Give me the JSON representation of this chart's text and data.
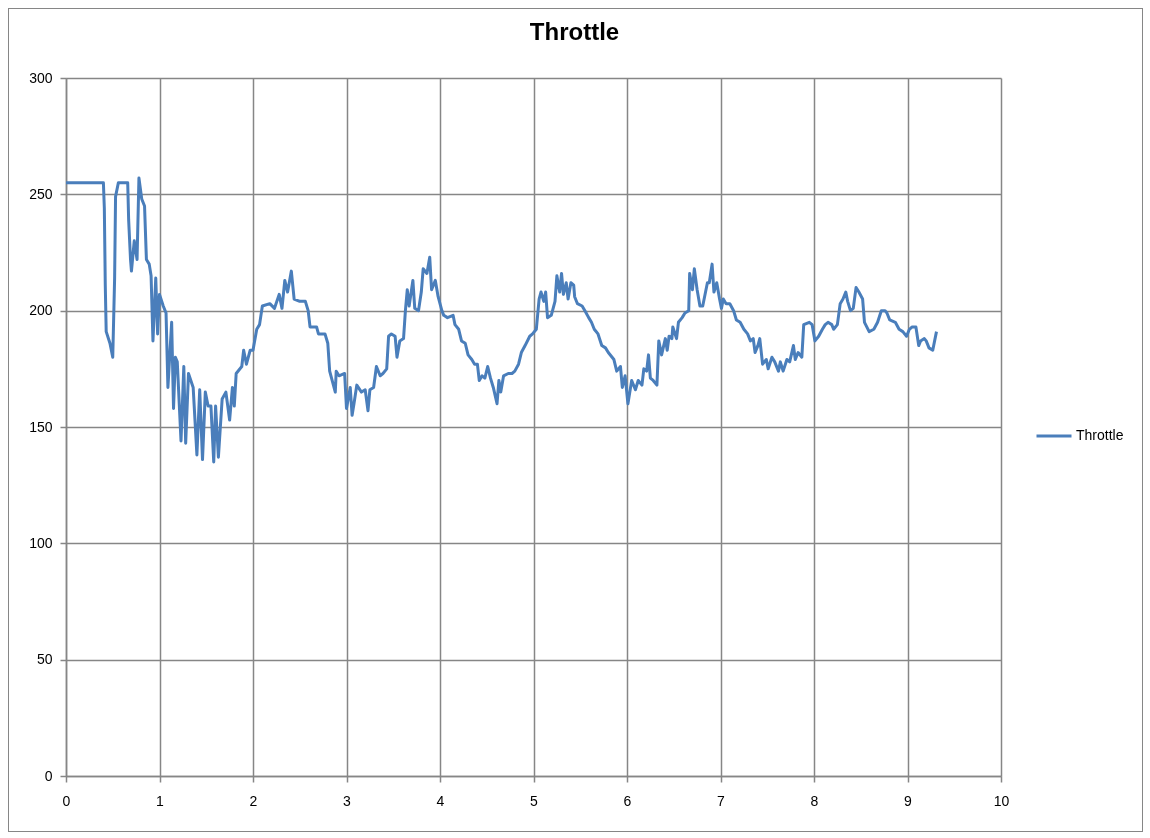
{
  "chart_data": {
    "type": "line",
    "title": "Throttle",
    "x": [
      0,
      0.4,
      0.41,
      0.42,
      0.43,
      0.47,
      0.5,
      0.52,
      0.53,
      0.56,
      0.66,
      0.67,
      0.69,
      0.7,
      0.73,
      0.76,
      0.78,
      0.81,
      0.84,
      0.86,
      0.89,
      0.91,
      0.93,
      0.96,
      0.98,
      1.0,
      1.04,
      1.07,
      1.09,
      1.13,
      1.15,
      1.17,
      1.19,
      1.23,
      1.26,
      1.28,
      1.31,
      1.36,
      1.4,
      1.43,
      1.46,
      1.49,
      1.52,
      1.55,
      1.58,
      1.6,
      1.63,
      1.67,
      1.71,
      1.75,
      1.78,
      1.8,
      1.82,
      1.88,
      1.9,
      1.93,
      1.97,
      2.0,
      2.04,
      2.07,
      2.1,
      2.18,
      2.23,
      2.28,
      2.31,
      2.34,
      2.37,
      2.41,
      2.44,
      2.5,
      2.56,
      2.59,
      2.61,
      2.68,
      2.7,
      2.77,
      2.8,
      2.82,
      2.88,
      2.89,
      2.92,
      2.98,
      3.0,
      3.04,
      3.06,
      3.08,
      3.11,
      3.16,
      3.2,
      3.23,
      3.25,
      3.29,
      3.32,
      3.36,
      3.39,
      3.43,
      3.45,
      3.48,
      3.52,
      3.54,
      3.57,
      3.61,
      3.63,
      3.65,
      3.67,
      3.71,
      3.73,
      3.77,
      3.8,
      3.82,
      3.86,
      3.89,
      3.91,
      3.95,
      3.98,
      4.02,
      4.04,
      4.08,
      4.14,
      4.16,
      4.2,
      4.23,
      4.27,
      4.3,
      4.34,
      4.37,
      4.4,
      4.42,
      4.45,
      4.48,
      4.51,
      4.54,
      4.57,
      4.61,
      4.63,
      4.65,
      4.68,
      4.73,
      4.77,
      4.8,
      4.84,
      4.87,
      4.91,
      4.96,
      4.99,
      5.03,
      5.06,
      5.08,
      5.11,
      5.13,
      5.15,
      5.19,
      5.23,
      5.25,
      5.28,
      5.3,
      5.32,
      5.35,
      5.37,
      5.4,
      5.43,
      5.44,
      5.47,
      5.52,
      5.55,
      5.59,
      5.62,
      5.65,
      5.69,
      5.73,
      5.77,
      5.8,
      5.86,
      5.89,
      5.93,
      5.95,
      5.98,
      6.01,
      6.05,
      6.09,
      6.12,
      6.16,
      6.18,
      6.21,
      6.23,
      6.25,
      6.28,
      6.32,
      6.34,
      6.37,
      6.41,
      6.43,
      6.45,
      6.48,
      6.49,
      6.53,
      6.55,
      6.59,
      6.62,
      6.66,
      6.67,
      6.7,
      6.72,
      6.75,
      6.78,
      6.81,
      6.84,
      6.86,
      6.88,
      6.91,
      6.93,
      6.96,
      6.99,
      7.01,
      7.03,
      7.06,
      7.1,
      7.14,
      7.17,
      7.21,
      7.25,
      7.29,
      7.32,
      7.35,
      7.37,
      7.4,
      7.42,
      7.45,
      7.49,
      7.51,
      7.55,
      7.58,
      7.62,
      7.64,
      7.67,
      7.71,
      7.74,
      7.78,
      7.8,
      7.83,
      7.87,
      7.89,
      7.95,
      7.98,
      8.01,
      8.05,
      8.09,
      8.12,
      8.15,
      8.19,
      8.21,
      8.25,
      8.28,
      8.31,
      8.34,
      8.36,
      8.39,
      8.42,
      8.45,
      8.48,
      8.52,
      8.54,
      8.59,
      8.64,
      8.68,
      8.72,
      8.76,
      8.78,
      8.81,
      8.87,
      8.91,
      8.95,
      8.99,
      9.02,
      9.05,
      9.09,
      9.12,
      9.14,
      9.18,
      9.2,
      9.23,
      9.27,
      9.29,
      9.31
    ],
    "series": [
      {
        "name": "Throttle",
        "color": "#4a7ebb",
        "values": [
          255,
          255,
          244,
          211,
          191,
          186,
          180,
          214,
          249,
          255,
          255,
          239,
          222,
          217,
          230,
          222,
          257,
          248,
          245,
          222,
          220,
          215,
          187,
          214,
          190,
          207,
          202,
          199,
          167,
          195,
          158,
          180,
          178,
          144,
          176,
          143,
          173,
          167,
          138,
          166,
          136,
          165,
          159,
          159,
          135,
          159,
          137,
          162,
          165,
          153,
          167,
          159,
          173,
          176,
          183,
          177,
          183,
          183,
          192,
          194,
          202,
          203,
          201,
          207,
          201,
          213,
          208,
          217,
          205,
          204,
          204,
          200,
          193,
          193,
          190,
          190,
          186,
          174,
          165,
          174,
          172,
          173,
          158,
          167,
          155,
          160,
          168,
          165,
          166,
          157,
          166,
          167,
          176,
          172,
          173,
          175,
          189,
          190,
          189,
          180,
          187,
          188,
          200,
          209,
          202,
          213,
          201,
          200,
          208,
          218,
          216,
          223,
          209,
          213,
          206,
          200,
          198,
          197,
          198,
          194,
          192,
          187,
          186,
          181,
          179,
          177,
          177,
          170,
          172,
          171,
          176,
          171,
          167,
          160,
          170,
          165,
          172,
          173,
          173,
          174,
          177,
          182,
          185,
          189,
          190,
          192,
          205,
          208,
          204,
          208,
          197,
          198,
          204,
          215,
          208,
          216,
          207,
          212,
          205,
          212,
          211,
          206,
          203,
          202,
          200,
          197,
          195,
          192,
          190,
          185,
          184,
          182,
          179,
          174,
          176,
          167,
          172,
          160,
          170,
          166,
          170,
          168,
          175,
          174,
          181,
          171,
          170,
          168,
          187,
          181,
          188,
          183,
          189,
          188,
          193,
          188,
          195,
          197,
          199,
          200,
          216,
          209,
          218,
          209,
          202,
          202,
          208,
          212,
          212,
          220,
          208,
          212,
          205,
          201,
          205,
          203,
          203,
          200,
          196,
          195,
          192,
          190,
          187,
          188,
          182,
          185,
          188,
          177,
          179,
          175,
          180,
          178,
          174,
          178,
          174,
          179,
          178,
          185,
          179,
          182,
          180,
          194,
          195,
          194,
          187,
          189,
          192,
          194,
          195,
          194,
          192,
          194,
          203,
          205,
          208,
          204,
          200,
          201,
          210,
          208,
          205,
          195,
          191,
          192,
          195,
          200,
          200,
          199,
          196,
          195,
          192,
          191,
          189,
          192,
          193,
          193,
          185,
          187,
          188,
          187,
          184,
          183,
          187,
          191
        ]
      }
    ],
    "xlim": [
      0,
      10
    ],
    "ylim": [
      0,
      300
    ],
    "xticks": [
      0,
      1,
      2,
      3,
      4,
      5,
      6,
      7,
      8,
      9,
      10
    ],
    "yticks": [
      0,
      50,
      100,
      150,
      200,
      250,
      300
    ],
    "grid": true,
    "legend": "right",
    "line_style": "solid"
  }
}
